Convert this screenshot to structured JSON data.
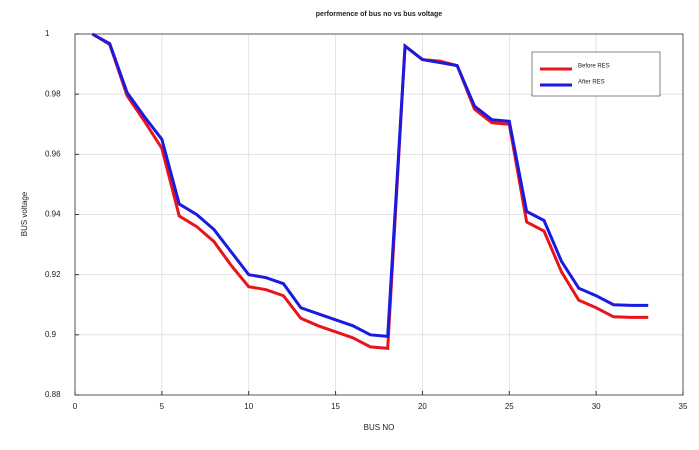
{
  "chart_data": {
    "type": "line",
    "title": "performence of bus no vs bus voltage",
    "x_label": "BUS NO",
    "y_label": "BUS  voltage",
    "x": [
      1,
      2,
      3,
      4,
      5,
      6,
      7,
      8,
      9,
      10,
      11,
      12,
      13,
      14,
      15,
      16,
      17,
      18,
      19,
      20,
      21,
      22,
      23,
      24,
      25,
      26,
      27,
      28,
      29,
      30,
      31,
      32,
      33
    ],
    "series": [
      {
        "name": "Before RES",
        "color": "#e8141a",
        "values": [
          1.0,
          0.9965,
          0.9795,
          0.971,
          0.962,
          0.9395,
          0.936,
          0.931,
          0.923,
          0.916,
          0.915,
          0.913,
          0.9055,
          0.903,
          0.901,
          0.899,
          0.896,
          0.8955,
          0.996,
          0.9915,
          0.991,
          0.9895,
          0.975,
          0.9705,
          0.97,
          0.9375,
          0.9345,
          0.921,
          0.9115,
          0.909,
          0.906,
          0.9058,
          0.9058
        ]
      },
      {
        "name": "After RES",
        "color": "#1a1ae0",
        "values": [
          1.0,
          0.9968,
          0.9805,
          0.9725,
          0.965,
          0.9435,
          0.94,
          0.935,
          0.9275,
          0.92,
          0.919,
          0.917,
          0.909,
          0.907,
          0.905,
          0.903,
          0.9,
          0.8995,
          0.996,
          0.9915,
          0.9905,
          0.9895,
          0.976,
          0.9715,
          0.971,
          0.941,
          0.938,
          0.9245,
          0.9155,
          0.913,
          0.91,
          0.9098,
          0.9098
        ]
      }
    ],
    "xlim": [
      0,
      35
    ],
    "xticks": [
      0,
      5,
      10,
      15,
      20,
      25,
      30,
      35
    ],
    "ylim": [
      0.88,
      1
    ],
    "yticks": [
      0.88,
      0.9,
      0.92,
      0.94,
      0.96,
      0.98,
      1
    ],
    "grid": true,
    "legend": "upper right"
  }
}
